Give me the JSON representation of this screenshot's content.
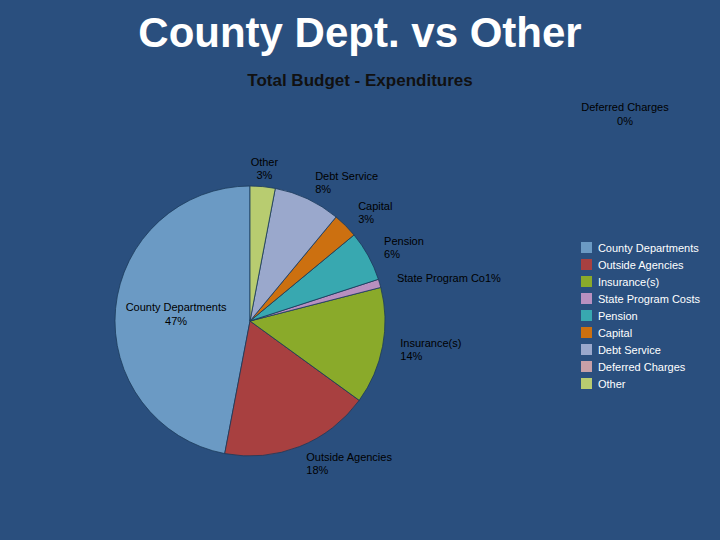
{
  "chart_data": {
    "type": "pie",
    "title": "County Dept. vs Other",
    "subtitle": "Total Budget - Expenditures",
    "categories": [
      "County Departments",
      "Outside Agencies",
      "Insurance(s)",
      "State Program Costs",
      "Pension",
      "Capital",
      "Debt Service",
      "Deferred Charges",
      "Other"
    ],
    "values": [
      47,
      18,
      14,
      1,
      6,
      3,
      8,
      0,
      3
    ],
    "value_labels": [
      "County Departments\n47%",
      "Outside Agencies\n18%",
      "Insurance(s)\n14%",
      "State Program Co1%",
      "Pension\n6%",
      "Capital\n3%",
      "Debt Service\n8%",
      "Deferred Charges\n0%",
      "Other\n3%"
    ],
    "colors": [
      "#6b9ac4",
      "#a84040",
      "#8aaa2a",
      "#b890c0",
      "#38a8b0",
      "#cc7010",
      "#9aa8cc",
      "#c8a0a8",
      "#b8cc70"
    ],
    "data_labels": true,
    "legend": "right"
  }
}
